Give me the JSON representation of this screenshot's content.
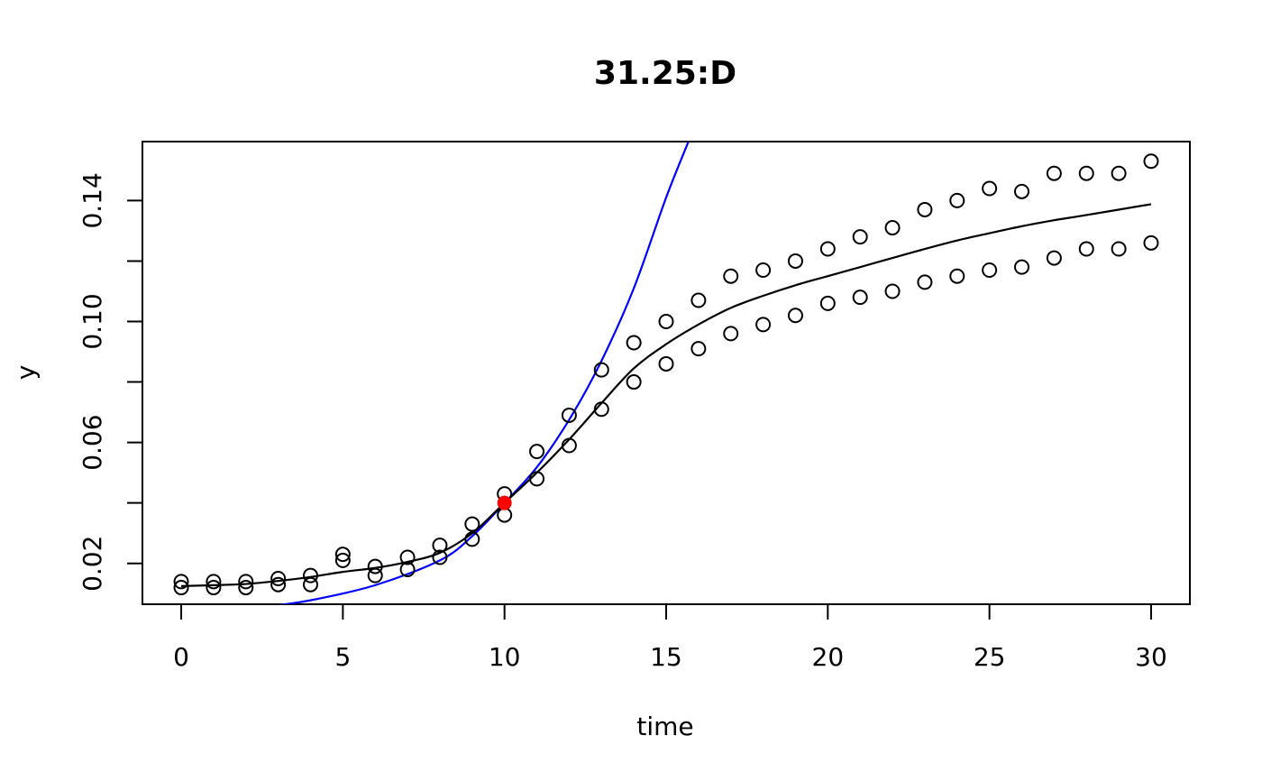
{
  "chart_data": {
    "type": "scatter",
    "title": "31.25:D",
    "xlabel": "time",
    "ylabel": "y",
    "xlim": [
      -1.2,
      31.2
    ],
    "ylim": [
      0.0065,
      0.1595
    ],
    "x_ticks": [
      "0",
      "5",
      "10",
      "15",
      "20",
      "25",
      "30"
    ],
    "y_ticks": [
      0.02,
      0.04,
      0.06,
      0.08,
      0.1,
      0.12,
      0.14
    ],
    "y_tick_labels": [
      "0.02",
      "0.06",
      "0.10",
      "0.14"
    ],
    "grid": false,
    "points": {
      "x": [
        0,
        0,
        1,
        1,
        2,
        2,
        3,
        3,
        4,
        4,
        5,
        5,
        6,
        6,
        7,
        7,
        8,
        8,
        9,
        9,
        10,
        10,
        11,
        11,
        12,
        12,
        13,
        13,
        14,
        14,
        15,
        15,
        16,
        16,
        17,
        17,
        18,
        18,
        19,
        19,
        20,
        20,
        21,
        21,
        22,
        22,
        23,
        23,
        24,
        24,
        25,
        25,
        26,
        26,
        27,
        27,
        28,
        28,
        29,
        29,
        30,
        30
      ],
      "y": [
        0.014,
        0.012,
        0.014,
        0.012,
        0.014,
        0.012,
        0.015,
        0.013,
        0.016,
        0.013,
        0.023,
        0.021,
        0.019,
        0.016,
        0.022,
        0.018,
        0.026,
        0.022,
        0.033,
        0.028,
        0.043,
        0.036,
        0.057,
        0.048,
        0.069,
        0.059,
        0.084,
        0.071,
        0.093,
        0.08,
        0.1,
        0.086,
        0.107,
        0.091,
        0.115,
        0.096,
        0.117,
        0.099,
        0.12,
        0.102,
        0.124,
        0.106,
        0.128,
        0.108,
        0.131,
        0.11,
        0.137,
        0.113,
        0.14,
        0.115,
        0.144,
        0.117,
        0.143,
        0.118,
        0.149,
        0.121,
        0.149,
        0.124,
        0.149,
        0.124,
        0.153,
        0.126
      ]
    },
    "fitted_curve": {
      "color": "#000000",
      "x": [
        0,
        1,
        2,
        3,
        4,
        5,
        6,
        7,
        8,
        9,
        10,
        11,
        12,
        13,
        14,
        15,
        16,
        17,
        18,
        19,
        20,
        21,
        22,
        23,
        24,
        25,
        26,
        27,
        28,
        30
      ],
      "y": [
        0.0125,
        0.0128,
        0.0132,
        0.0142,
        0.0155,
        0.0172,
        0.0185,
        0.0205,
        0.0235,
        0.03,
        0.04,
        0.05,
        0.061,
        0.073,
        0.0845,
        0.0925,
        0.099,
        0.1045,
        0.1085,
        0.112,
        0.115,
        0.118,
        0.121,
        0.124,
        0.1268,
        0.1292,
        0.1315,
        0.1335,
        0.1352,
        0.1388
      ]
    },
    "tangent_curve": {
      "color": "#0000ff",
      "x": [
        2.5,
        4,
        6,
        8,
        9,
        10,
        11,
        12,
        13,
        14,
        15,
        15.69
      ],
      "y": [
        0.0055,
        0.0078,
        0.0128,
        0.021,
        0.029,
        0.04,
        0.0518,
        0.0675,
        0.087,
        0.111,
        0.141,
        0.1595
      ]
    },
    "highlight_point": {
      "x": 10,
      "y": 0.04,
      "color": "#ff0000"
    }
  }
}
